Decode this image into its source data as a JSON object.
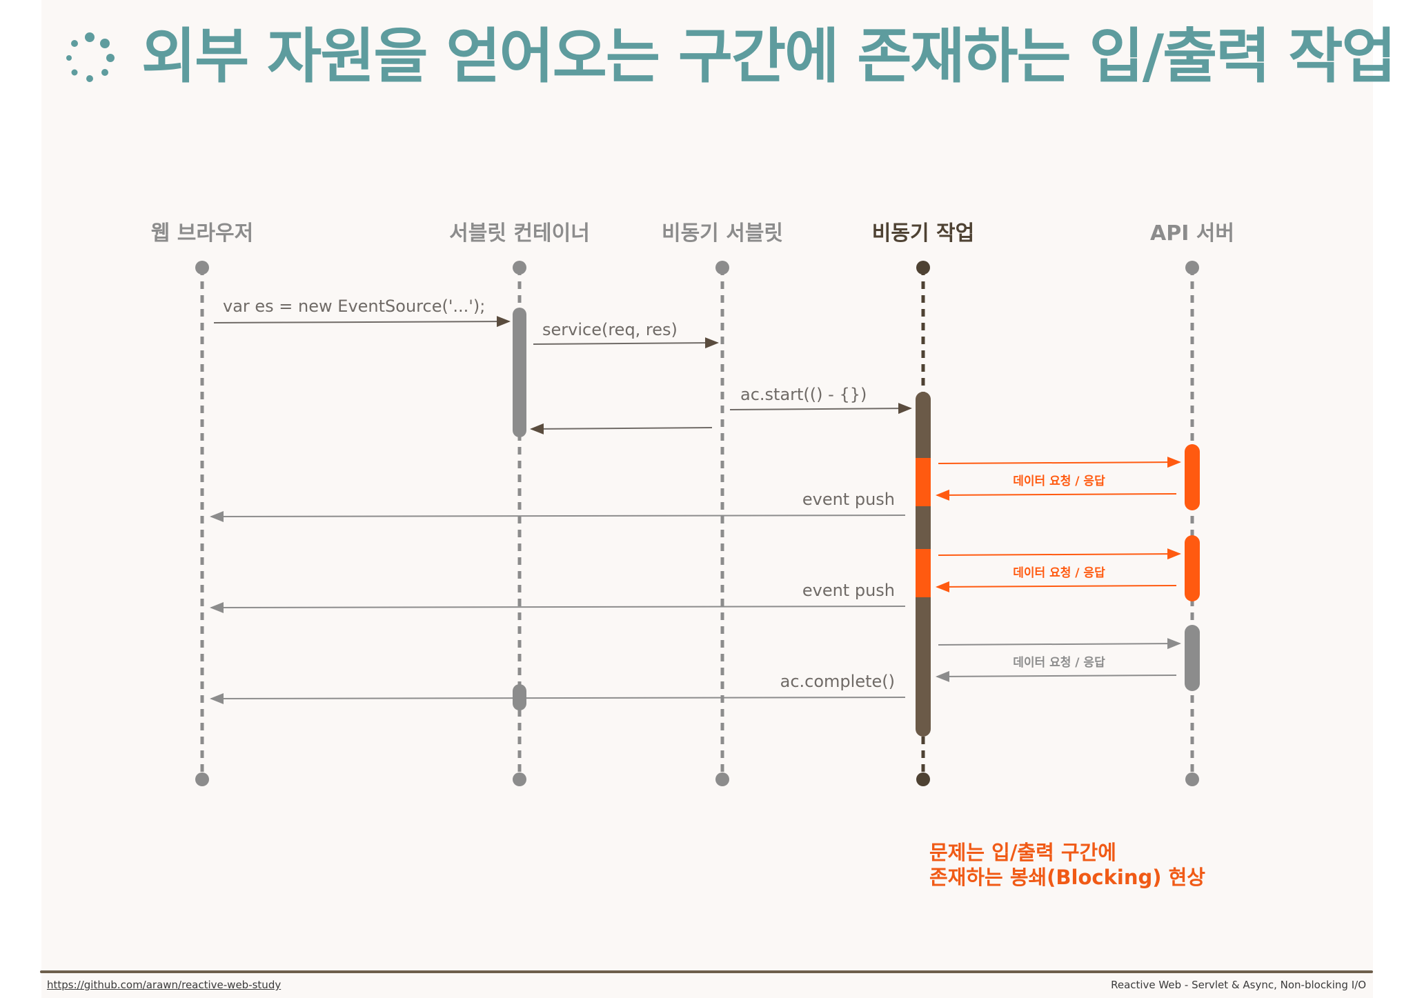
{
  "title": "외부 자원을 얻어오는 구간에 존재하는 입/출력 작업",
  "actors": {
    "browser": "웹 브라우저",
    "container": "서블릿 컨테이너",
    "async_servlet": "비동기 서블릿",
    "async_task": "비동기 작업",
    "api_server": "API 서버"
  },
  "messages": {
    "event_source": "var es = new EventSource('...');",
    "service": "service(req, res)",
    "start": "ac.start(() - {})",
    "event_push_1": "event push",
    "event_push_2": "event push",
    "complete": "ac.complete()",
    "io_1": "데이터 요청 / 응답",
    "io_2": "데이터 요청 / 응답",
    "io_3": "데이터 요청 / 응답"
  },
  "note": {
    "line1": "문제는 입/출력 구간에",
    "line2": "존재하는 봉쇄(Blocking) 현상"
  },
  "footer": {
    "url": "https://github.com/arawn/reactive-web-study",
    "subtitle": "Reactive Web - Servlet & Async, Non-blocking I/O"
  },
  "colors": {
    "accent": "#5e9c9e",
    "gray": "#8c8c8c",
    "dark": "#6b5a48",
    "blocking": "#ff5a10"
  }
}
